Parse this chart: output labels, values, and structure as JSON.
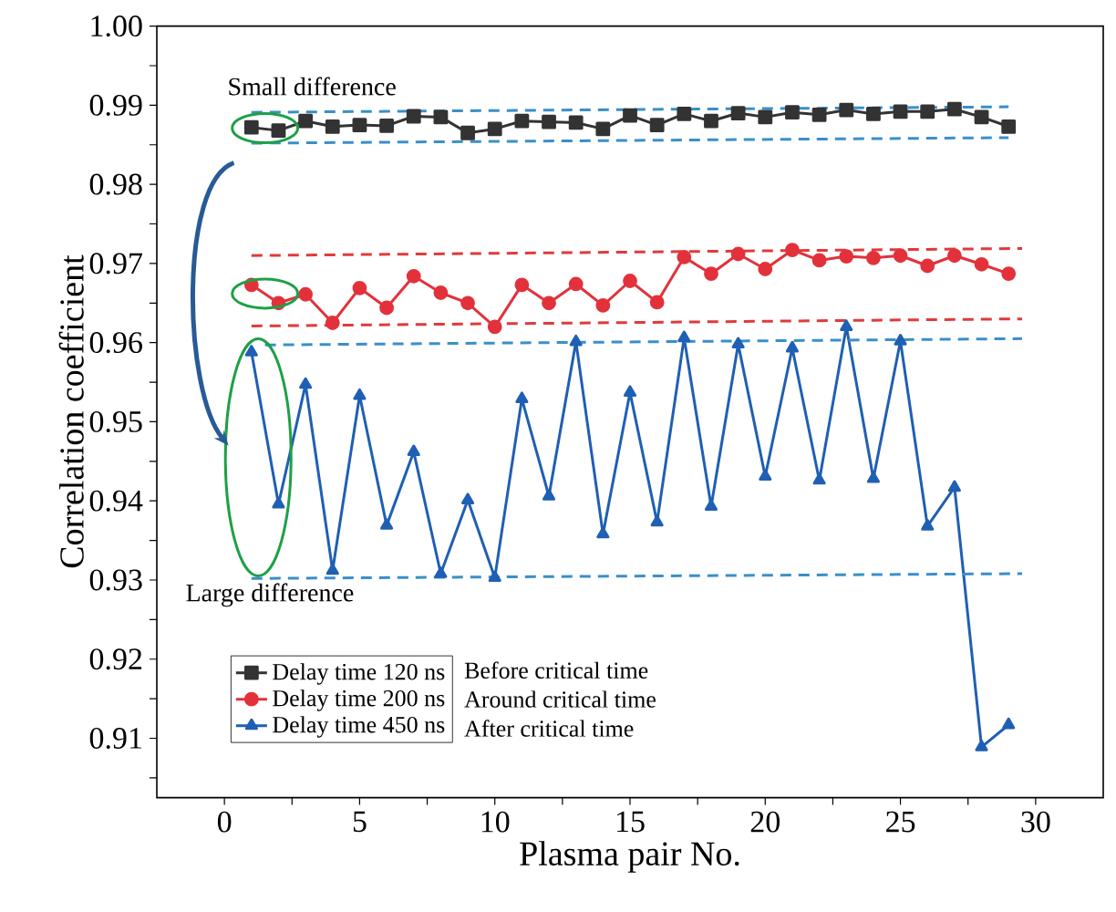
{
  "chart_data": {
    "type": "line",
    "xlabel": "Plasma pair No.",
    "ylabel": "Correlation coefficient",
    "x": [
      1,
      2,
      3,
      4,
      5,
      6,
      7,
      8,
      9,
      10,
      11,
      12,
      13,
      14,
      15,
      16,
      17,
      18,
      19,
      20,
      21,
      22,
      23,
      24,
      25,
      26,
      27,
      28,
      29
    ],
    "series": [
      {
        "name": "Delay time 120 ns",
        "color": "#333333",
        "marker": "square",
        "values": [
          0.9872,
          0.9868,
          0.988,
          0.9873,
          0.9875,
          0.9874,
          0.9886,
          0.9885,
          0.9865,
          0.987,
          0.988,
          0.9879,
          0.9878,
          0.987,
          0.9887,
          0.9875,
          0.9889,
          0.988,
          0.989,
          0.9885,
          0.9891,
          0.9888,
          0.9894,
          0.9889,
          0.9892,
          0.9892,
          0.9895,
          0.9885,
          0.9873
        ]
      },
      {
        "name": "Delay time 200 ns",
        "color": "#e3313b",
        "marker": "circle",
        "values": [
          0.9673,
          0.965,
          0.9661,
          0.9625,
          0.9669,
          0.9644,
          0.9684,
          0.9663,
          0.965,
          0.962,
          0.9673,
          0.965,
          0.9674,
          0.9647,
          0.9678,
          0.9651,
          0.9708,
          0.9687,
          0.9712,
          0.9693,
          0.9717,
          0.9704,
          0.9709,
          0.9707,
          0.971,
          0.9697,
          0.971,
          0.9699,
          0.9687
        ]
      },
      {
        "name": "Delay time 450 ns",
        "color": "#1f5fb4",
        "marker": "triangle",
        "values": [
          0.9588,
          0.9396,
          0.9547,
          0.9312,
          0.9533,
          0.9369,
          0.9462,
          0.9308,
          0.9401,
          0.9303,
          0.9529,
          0.9406,
          0.9601,
          0.9358,
          0.9537,
          0.9373,
          0.9606,
          0.9393,
          0.9598,
          0.9431,
          0.9593,
          0.9426,
          0.962,
          0.9428,
          0.9602,
          0.9368,
          0.9417,
          0.9089,
          0.9117
        ]
      },
      {
        "color": "#3a8fc8",
        "line_style": "dashed",
        "marker": "none",
        "x": [
          1,
          29
        ],
        "values": [
          0.9891,
          0.9898
        ]
      },
      {
        "color": "#3a8fc8",
        "line_style": "dashed",
        "marker": "none",
        "x": [
          1,
          29
        ],
        "values": [
          0.9852,
          0.9859
        ]
      },
      {
        "color": "#e03a3a",
        "line_style": "dashed",
        "marker": "none",
        "x": [
          1,
          29.5
        ],
        "values": [
          0.971,
          0.9719
        ]
      },
      {
        "color": "#e03a3a",
        "line_style": "dashed",
        "marker": "none",
        "x": [
          1,
          29.5
        ],
        "values": [
          0.9621,
          0.963
        ]
      },
      {
        "color": "#3a8fc8",
        "line_style": "dashed",
        "marker": "none",
        "x": [
          1.5,
          29.5
        ],
        "values": [
          0.9597,
          0.9605
        ]
      },
      {
        "color": "#3a8fc8",
        "line_style": "dashed",
        "marker": "none",
        "x": [
          1,
          29.5
        ],
        "values": [
          0.9302,
          0.9308
        ]
      }
    ],
    "annotations": [
      "Small difference",
      "Large difference",
      "Before critical time",
      "Around critical time",
      "After critical time"
    ],
    "xlim": [
      -2.5,
      32.5
    ],
    "ylim": [
      0.9025,
      1.0
    ],
    "xticks": [
      0,
      {
        "value": 2.5,
        "label": null
      },
      5,
      {
        "value": 7.5,
        "label": null
      },
      10,
      {
        "value": 12.5,
        "label": null
      },
      15,
      {
        "value": 17.5,
        "label": null
      },
      20,
      {
        "value": 22.5,
        "label": null
      },
      25,
      {
        "value": 27.5,
        "label": null
      },
      30
    ],
    "yticks": [
      {
        "value": 0.905,
        "label": null
      },
      0.91,
      {
        "value": 0.915,
        "label": null
      },
      0.92,
      {
        "value": 0.925,
        "label": null
      },
      0.93,
      {
        "value": 0.935,
        "label": null
      },
      0.94,
      {
        "value": 0.945,
        "label": null
      },
      0.95,
      {
        "value": 0.955,
        "label": null
      },
      0.96,
      {
        "value": 0.965,
        "label": null
      },
      0.97,
      {
        "value": 0.975,
        "label": null
      },
      0.98,
      {
        "value": 0.985,
        "label": null
      },
      0.99,
      {
        "value": 0.995,
        "label": null
      },
      {
        "value": 1.0,
        "label": "1.00"
      }
    ],
    "legend": "bottom left"
  }
}
